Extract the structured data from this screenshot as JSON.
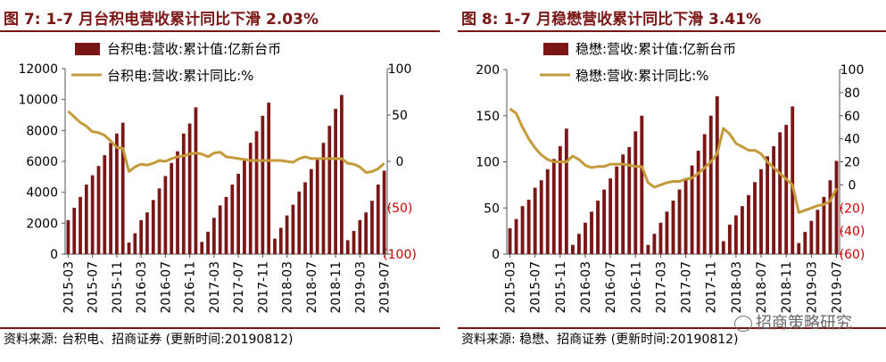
{
  "panels": [
    {
      "title": "图 7:  1-7 月台积电营收累计同比下滑 2.03%",
      "source": "资料来源:  台积电、招商证券 (更新时间:20190812)"
    },
    {
      "title": "图 8:    1-7 月稳懋营收累计同比下滑 3.41%",
      "source": "资料来源:  稳懋、招商证券 (更新时间:20190812)",
      "watermark": "招商策略研究"
    }
  ],
  "colors": {
    "bar": "#7a1616",
    "line": "#c49a3a",
    "neg_tick": "#cc0000",
    "rule": "#7a1616"
  },
  "chart_data": [
    {
      "type": "bar+line",
      "x_ticks": [
        "2015-03",
        "2015-07",
        "2015-11",
        "2016-03",
        "2016-07",
        "2016-11",
        "2017-03",
        "2017-07",
        "2017-11",
        "2018-03",
        "2018-07",
        "2018-11",
        "2019-03",
        "2019-07"
      ],
      "x": [
        "2015-03",
        "2015-04",
        "2015-05",
        "2015-06",
        "2015-07",
        "2015-08",
        "2015-09",
        "2015-10",
        "2015-11",
        "2015-12",
        "2016-01",
        "2016-02",
        "2016-03",
        "2016-04",
        "2016-05",
        "2016-06",
        "2016-07",
        "2016-08",
        "2016-09",
        "2016-10",
        "2016-11",
        "2016-12",
        "2017-01",
        "2017-02",
        "2017-03",
        "2017-04",
        "2017-05",
        "2017-06",
        "2017-07",
        "2017-08",
        "2017-09",
        "2017-10",
        "2017-11",
        "2017-12",
        "2018-01",
        "2018-02",
        "2018-03",
        "2018-04",
        "2018-05",
        "2018-06",
        "2018-07",
        "2018-08",
        "2018-09",
        "2018-10",
        "2018-11",
        "2018-12",
        "2019-01",
        "2019-02",
        "2019-03",
        "2019-04",
        "2019-05",
        "2019-06",
        "2019-07"
      ],
      "series": [
        {
          "name": "台积电:营收:累计值:亿新台币",
          "type": "bar",
          "axis": "left",
          "values": [
            2200,
            3000,
            3700,
            4500,
            5100,
            5700,
            6400,
            7200,
            7800,
            8500,
            750,
            1350,
            2200,
            2700,
            3500,
            4250,
            5050,
            5900,
            6650,
            7800,
            8450,
            9500,
            790,
            1450,
            2350,
            3150,
            3700,
            4500,
            5200,
            6200,
            7200,
            7950,
            8950,
            9800,
            1000,
            1700,
            2500,
            3200,
            4050,
            4650,
            5500,
            6250,
            7200,
            8300,
            9400,
            10300,
            900,
            1500,
            2200,
            2700,
            3450,
            4500,
            5400
          ]
        },
        {
          "name": "台积电:营收:累计同比:%",
          "type": "line",
          "axis": "right",
          "values": [
            54,
            48,
            42,
            38,
            32,
            31,
            28,
            22,
            15,
            14,
            -11,
            -6,
            -3,
            -4,
            -2,
            1,
            0,
            3,
            5,
            6,
            8,
            9,
            8,
            5,
            9,
            10,
            5,
            4,
            3,
            2,
            1,
            1,
            1,
            1,
            1,
            1,
            0,
            -1,
            3,
            5,
            3,
            3,
            3,
            3,
            3,
            3,
            -2,
            -3,
            -6,
            -12,
            -11,
            -8,
            -2
          ]
        }
      ],
      "ylim_left": [
        0,
        12000
      ],
      "y_ticks_left": [
        "0",
        "2000",
        "4000",
        "6000",
        "8000",
        "10000",
        "12000"
      ],
      "ylim_right": [
        -100,
        100
      ],
      "y_ticks_right": [
        "(100)",
        "(50)",
        "0",
        "50",
        "100"
      ],
      "legend": [
        "台积电:营收:累计值:亿新台币",
        "台积电:营收:累计同比:%"
      ]
    },
    {
      "type": "bar+line",
      "x_ticks": [
        "2015-03",
        "2015-07",
        "2015-11",
        "2016-03",
        "2016-07",
        "2016-11",
        "2017-03",
        "2017-07",
        "2017-11",
        "2018-03",
        "2018-07",
        "2018-11",
        "2019-03",
        "2019-07"
      ],
      "x": [
        "2015-03",
        "2015-04",
        "2015-05",
        "2015-06",
        "2015-07",
        "2015-08",
        "2015-09",
        "2015-10",
        "2015-11",
        "2015-12",
        "2016-01",
        "2016-02",
        "2016-03",
        "2016-04",
        "2016-05",
        "2016-06",
        "2016-07",
        "2016-08",
        "2016-09",
        "2016-10",
        "2016-11",
        "2016-12",
        "2017-01",
        "2017-02",
        "2017-03",
        "2017-04",
        "2017-05",
        "2017-06",
        "2017-07",
        "2017-08",
        "2017-09",
        "2017-10",
        "2017-11",
        "2017-12",
        "2018-01",
        "2018-02",
        "2018-03",
        "2018-04",
        "2018-05",
        "2018-06",
        "2018-07",
        "2018-08",
        "2018-09",
        "2018-10",
        "2018-11",
        "2018-12",
        "2019-01",
        "2019-02",
        "2019-03",
        "2019-04",
        "2019-05",
        "2019-06",
        "2019-07"
      ],
      "series": [
        {
          "name": "稳懋:营收:累计值:亿新台币",
          "type": "bar",
          "axis": "left",
          "values": [
            28,
            38,
            52,
            59,
            72,
            80,
            92,
            103,
            117,
            136,
            10,
            22,
            34,
            46,
            58,
            70,
            82,
            95,
            108,
            116,
            133,
            150,
            10,
            22,
            34,
            46,
            58,
            70,
            82,
            96,
            112,
            130,
            150,
            171,
            14,
            32,
            42,
            52,
            64,
            78,
            92,
            106,
            117,
            132,
            140,
            160,
            12,
            24,
            36,
            48,
            62,
            80,
            101
          ]
        },
        {
          "name": "稳懋:营收:累计同比:%",
          "type": "line",
          "axis": "right",
          "values": [
            66,
            62,
            50,
            40,
            32,
            26,
            22,
            20,
            20,
            20,
            25,
            22,
            17,
            15,
            16,
            16,
            18,
            18,
            18,
            17,
            16,
            16,
            2,
            -2,
            0,
            2,
            3,
            3,
            5,
            6,
            10,
            15,
            20,
            27,
            49,
            44,
            36,
            33,
            30,
            30,
            27,
            20,
            15,
            10,
            5,
            0,
            -24,
            -22,
            -20,
            -18,
            -17,
            -14,
            -3
          ]
        }
      ],
      "ylim_left": [
        0,
        200
      ],
      "y_ticks_left": [
        "0",
        "50",
        "100",
        "150",
        "200"
      ],
      "ylim_right": [
        -60,
        100
      ],
      "y_ticks_right": [
        "(60)",
        "(40)",
        "(20)",
        "0",
        "20",
        "40",
        "60",
        "80",
        "100"
      ],
      "legend": [
        "稳懋:营收:累计值:亿新台币",
        "稳懋:营收:累计同比:%"
      ]
    }
  ]
}
